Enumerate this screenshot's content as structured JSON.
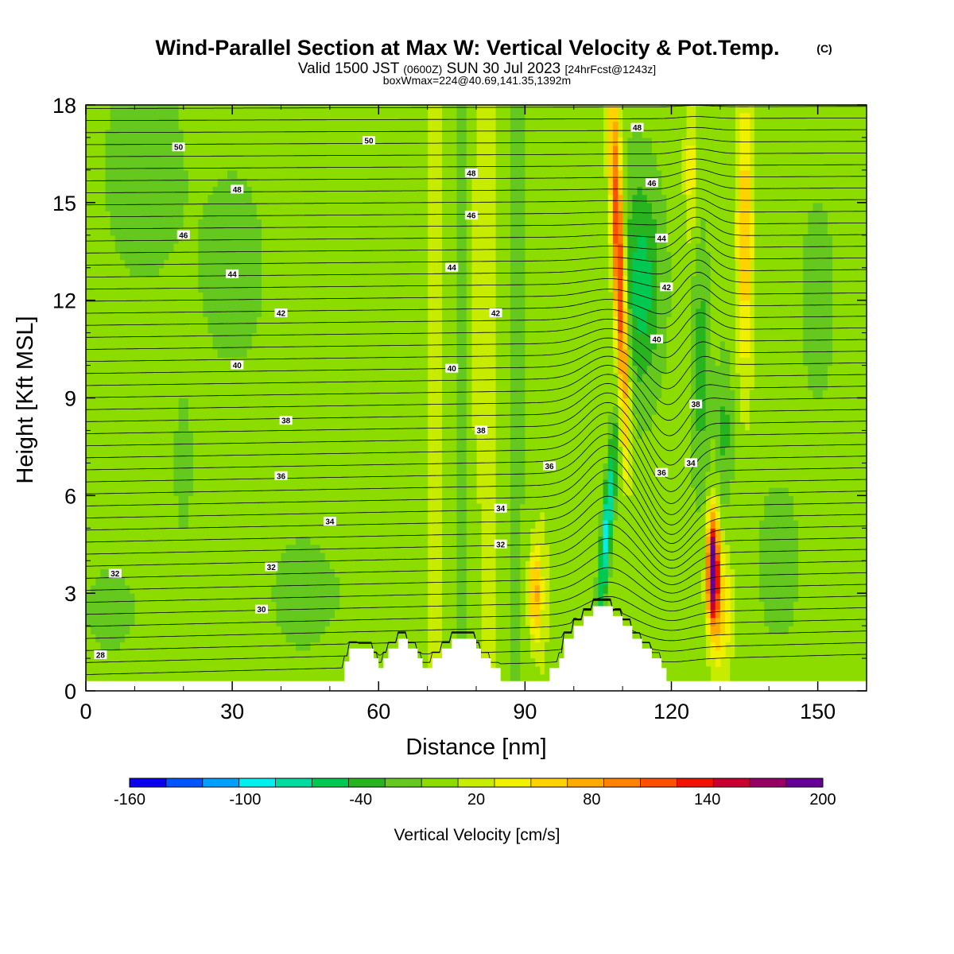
{
  "title": {
    "main": "Wind-Parallel Section at Max W: Vertical Velocity & Pot.Temp.",
    "copyright": "(C)",
    "valid_prefix": "Valid 1500 JST",
    "zulu": "(0600Z)",
    "valid_date": "SUN 30 Jul 2023",
    "forecast": "[24hrFcst@1243z]",
    "boxwmax": "boxWmax=224@40.69,141.35,1392m"
  },
  "chart_data": {
    "type": "heatmap",
    "title": "Wind-Parallel Section at Max W: Vertical Velocity & Pot.Temp.",
    "xlabel": "Distance [nm]",
    "ylabel": "Height [Kft MSL]",
    "xlim": [
      0,
      160
    ],
    "ylim": [
      0,
      18
    ],
    "x_ticks": [
      0,
      30,
      60,
      90,
      120,
      150
    ],
    "y_ticks": [
      0,
      3,
      6,
      9,
      12,
      15,
      18
    ],
    "colorbar": {
      "label": "Vertical Velocity [cm/s]",
      "tick_labels": [
        "-160",
        "-100",
        "-40",
        "20",
        "80",
        "140",
        "200"
      ],
      "tick_values": [
        -160,
        -100,
        -40,
        20,
        80,
        140,
        200
      ],
      "levels": [
        -160,
        -140,
        -120,
        -100,
        -80,
        -60,
        -40,
        -20,
        0,
        20,
        40,
        60,
        80,
        100,
        120,
        140,
        160,
        180,
        200
      ],
      "colors": [
        "#0a00f0",
        "#0055ff",
        "#00a0ff",
        "#00f0f0",
        "#00dca0",
        "#00c850",
        "#28b41e",
        "#64c81e",
        "#8cdc00",
        "#c8ec00",
        "#f0f000",
        "#ffd200",
        "#ffaa00",
        "#ff8200",
        "#ff5000",
        "#f01400",
        "#c80032",
        "#960064",
        "#640096"
      ]
    },
    "terrain_profile": [
      [
        0,
        0.3
      ],
      [
        52,
        0.3
      ],
      [
        53,
        0.9
      ],
      [
        54,
        1.3
      ],
      [
        58,
        1.3
      ],
      [
        59,
        1.0
      ],
      [
        60,
        0.7
      ],
      [
        61,
        1.0
      ],
      [
        62,
        1.3
      ],
      [
        64,
        1.6
      ],
      [
        66,
        1.3
      ],
      [
        68,
        1.0
      ],
      [
        69,
        0.7
      ],
      [
        71,
        1.0
      ],
      [
        73,
        1.3
      ],
      [
        75,
        1.6
      ],
      [
        79,
        1.6
      ],
      [
        80,
        1.3
      ],
      [
        81,
        1.0
      ],
      [
        83,
        0.7
      ],
      [
        85,
        0.3
      ],
      [
        89,
        0.3
      ],
      [
        91,
        0.3
      ],
      [
        93,
        0.3
      ],
      [
        95,
        0.7
      ],
      [
        97,
        1.0
      ],
      [
        98,
        1.6
      ],
      [
        100,
        2.0
      ],
      [
        102,
        2.3
      ],
      [
        104,
        2.6
      ],
      [
        106,
        2.6
      ],
      [
        108,
        2.3
      ],
      [
        110,
        2.0
      ],
      [
        112,
        1.6
      ],
      [
        114,
        1.3
      ],
      [
        116,
        1.0
      ],
      [
        118,
        0.7
      ],
      [
        119,
        0.3
      ],
      [
        160,
        0.3
      ]
    ],
    "vertical_velocity_features": [
      {
        "x": 109,
        "y_range": [
          3,
          17.5
        ],
        "peak_cm_s": 140
      },
      {
        "x": 129,
        "y_range": [
          1.5,
          6
        ],
        "peak_cm_s": 200
      },
      {
        "x": 107,
        "y_range": [
          2.5,
          6.5
        ],
        "min_cm_s": -100
      },
      {
        "x": 92,
        "y_range": [
          1,
          4.5
        ],
        "peak_cm_s": 80
      },
      {
        "x": 135,
        "y_range": [
          9,
          18
        ],
        "peak_cm_s": 80
      }
    ],
    "theta_contours": {
      "contour_labels": [
        {
          "value": "50",
          "x": 19,
          "y": 16.7
        },
        {
          "value": "50",
          "x": 58,
          "y": 16.9
        },
        {
          "value": "48",
          "x": 31,
          "y": 15.4
        },
        {
          "value": "48",
          "x": 79,
          "y": 15.9
        },
        {
          "value": "46",
          "x": 20,
          "y": 14.0
        },
        {
          "value": "46",
          "x": 79,
          "y": 14.6
        },
        {
          "value": "48",
          "x": 113,
          "y": 17.3
        },
        {
          "value": "46",
          "x": 116,
          "y": 15.6
        },
        {
          "value": "44",
          "x": 30,
          "y": 12.8
        },
        {
          "value": "44",
          "x": 75,
          "y": 13.0
        },
        {
          "value": "44",
          "x": 118,
          "y": 13.9
        },
        {
          "value": "42",
          "x": 40,
          "y": 11.6
        },
        {
          "value": "42",
          "x": 84,
          "y": 11.6
        },
        {
          "value": "42",
          "x": 119,
          "y": 12.4
        },
        {
          "value": "40",
          "x": 31,
          "y": 10.0
        },
        {
          "value": "40",
          "x": 75,
          "y": 9.9
        },
        {
          "value": "40",
          "x": 117,
          "y": 10.8
        },
        {
          "value": "38",
          "x": 41,
          "y": 8.3
        },
        {
          "value": "38",
          "x": 81,
          "y": 8.0
        },
        {
          "value": "38",
          "x": 125,
          "y": 8.8
        },
        {
          "value": "36",
          "x": 40,
          "y": 6.6
        },
        {
          "value": "36",
          "x": 95,
          "y": 6.9
        },
        {
          "value": "36",
          "x": 118,
          "y": 6.7
        },
        {
          "value": "34",
          "x": 50,
          "y": 5.2
        },
        {
          "value": "34",
          "x": 85,
          "y": 5.6
        },
        {
          "value": "34",
          "x": 124,
          "y": 7.0
        },
        {
          "value": "32",
          "x": 6,
          "y": 3.6
        },
        {
          "value": "32",
          "x": 38,
          "y": 3.8
        },
        {
          "value": "32",
          "x": 85,
          "y": 4.5
        },
        {
          "value": "30",
          "x": 36,
          "y": 2.5
        },
        {
          "value": "28",
          "x": 3,
          "y": 1.1
        }
      ]
    }
  }
}
